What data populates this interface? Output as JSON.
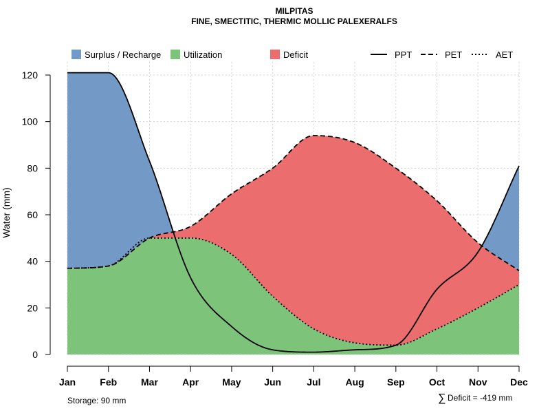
{
  "chart_data": {
    "type": "area",
    "title": "MILPITAS",
    "subtitle": "FINE, SMECTITIC, THERMIC MOLLIC PALEXERALFS",
    "ylabel": "Water (mm)",
    "xlabel": "",
    "ylim": [
      0,
      125
    ],
    "yticks": [
      0,
      20,
      40,
      60,
      80,
      100,
      120
    ],
    "grid": true,
    "categories": [
      "Jan",
      "Feb",
      "Mar",
      "Apr",
      "May",
      "Jun",
      "Jul",
      "Aug",
      "Sep",
      "Oct",
      "Nov",
      "Dec"
    ],
    "series": [
      {
        "name": "PPT",
        "style": "solid",
        "values": [
          121,
          121,
          83,
          33,
          12,
          2,
          1,
          2,
          4,
          28,
          44,
          81
        ]
      },
      {
        "name": "PET",
        "style": "dashed",
        "values": [
          37,
          38,
          50,
          55,
          69,
          80,
          94,
          91,
          80,
          66,
          48,
          36
        ]
      },
      {
        "name": "AET",
        "style": "dotted",
        "values": [
          37,
          38,
          50,
          50,
          43,
          25,
          11,
          5,
          4,
          11,
          20,
          30
        ]
      }
    ],
    "areas": [
      {
        "name": "Surplus / Recharge",
        "color": "#7399C6"
      },
      {
        "name": "Utilization",
        "color": "#7DC47A"
      },
      {
        "name": "Deficit",
        "color": "#EB6D6D"
      }
    ],
    "legend_position": "top",
    "annotations": {
      "storage": "Storage: 90 mm",
      "deficit_symbol": "∑",
      "deficit": "Deficit = -419 mm"
    }
  }
}
